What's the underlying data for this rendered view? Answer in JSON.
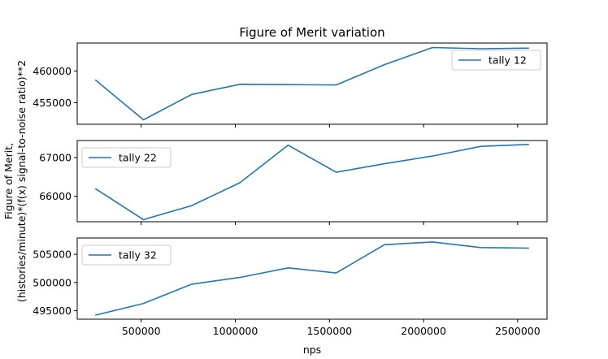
{
  "chart_data": {
    "type": "line",
    "title": "Figure of Merit variation",
    "xlabel": "nps",
    "ylabel_lines": [
      "Figure of Merit,",
      "(histories/minute)*(f(x) signal-to-noise ratio)**2"
    ],
    "x": [
      256000,
      512000,
      768000,
      1024000,
      1280000,
      1536000,
      1792000,
      2048000,
      2304000,
      2560000
    ],
    "xlim": [
      160000,
      2656000
    ],
    "xticks": [
      500000,
      1000000,
      1500000,
      2000000,
      2500000
    ],
    "xtick_labels": [
      "500000",
      "1000000",
      "1500000",
      "2000000",
      "2500000"
    ],
    "line_color": "#1f77b4",
    "panels": [
      {
        "series_name": "tally 12",
        "values": [
          458600,
          452300,
          456300,
          457900,
          457850,
          457800,
          461000,
          463700,
          463500,
          463600
        ],
        "ylim": [
          451600,
          464400
        ],
        "yticks": [
          455000,
          460000
        ],
        "ytick_labels": [
          "455000",
          "460000"
        ],
        "legend_position": "upper-right"
      },
      {
        "series_name": "tally 22",
        "values": [
          66200,
          65400,
          65760,
          66350,
          67320,
          66620,
          66840,
          67040,
          67290,
          67340
        ],
        "ylim": [
          65345,
          67440
        ],
        "yticks": [
          66000,
          67000
        ],
        "ytick_labels": [
          "66000",
          "67000"
        ],
        "legend_position": "upper-left"
      },
      {
        "series_name": "tally 32",
        "values": [
          494200,
          496300,
          499700,
          500900,
          502600,
          501700,
          506700,
          507200,
          506200,
          506100
        ],
        "ylim": [
          493500,
          507900
        ],
        "yticks": [
          495000,
          500000,
          505000
        ],
        "ytick_labels": [
          "495000",
          "500000",
          "505000"
        ],
        "legend_position": "upper-left"
      }
    ]
  }
}
